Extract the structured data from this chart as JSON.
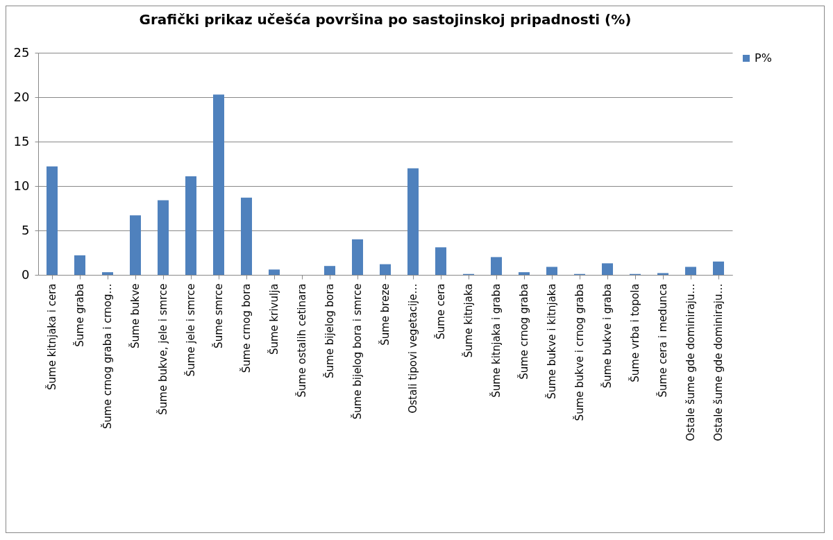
{
  "chart_data": {
    "type": "bar",
    "title": "Grafički prikaz učešća površina po sastojinskoj pripadnosti  (%)",
    "categories": [
      "Šume kitnjaka i cera",
      "Šume graba",
      "Šume crnog graba i crnog…",
      "Šume bukve",
      "Šume bukve, jele i smrce",
      "Šume jele i smrce",
      "Šume smrce",
      "Šume crnog bora",
      "Šume krivulja",
      "Šume ostalih cetinara",
      "Šume bijelog bora",
      "Šume bijelog bora i smrce",
      "Šume breze",
      "Ostali tipovi vegetacije…",
      "Šume cera",
      "Šume kitnjaka",
      "Šume kitnjaka i graba",
      "Šume crnog graba",
      "Šume bukve i kitnjaka",
      "Šume bukve i crnog graba",
      "Šume bukve i graba",
      "Šume vrba i topola",
      "Šume cera i medunca",
      "Ostale šume gde dominiraju…",
      "Ostale šume gde dominiraju…"
    ],
    "series": [
      {
        "name": "P%",
        "color": "#4f81bd",
        "values": [
          12.2,
          2.2,
          0.3,
          6.7,
          8.4,
          11.1,
          20.3,
          8.7,
          0.6,
          0,
          1.0,
          4.0,
          1.2,
          12.0,
          3.1,
          0.1,
          2.0,
          0.3,
          0.9,
          0.1,
          1.3,
          0.1,
          0.2,
          0.9,
          1.5
        ]
      }
    ],
    "ylim": [
      0,
      25
    ],
    "yticks": [
      0,
      5,
      10,
      15,
      20,
      25
    ],
    "grid": "y",
    "legend": "right"
  }
}
